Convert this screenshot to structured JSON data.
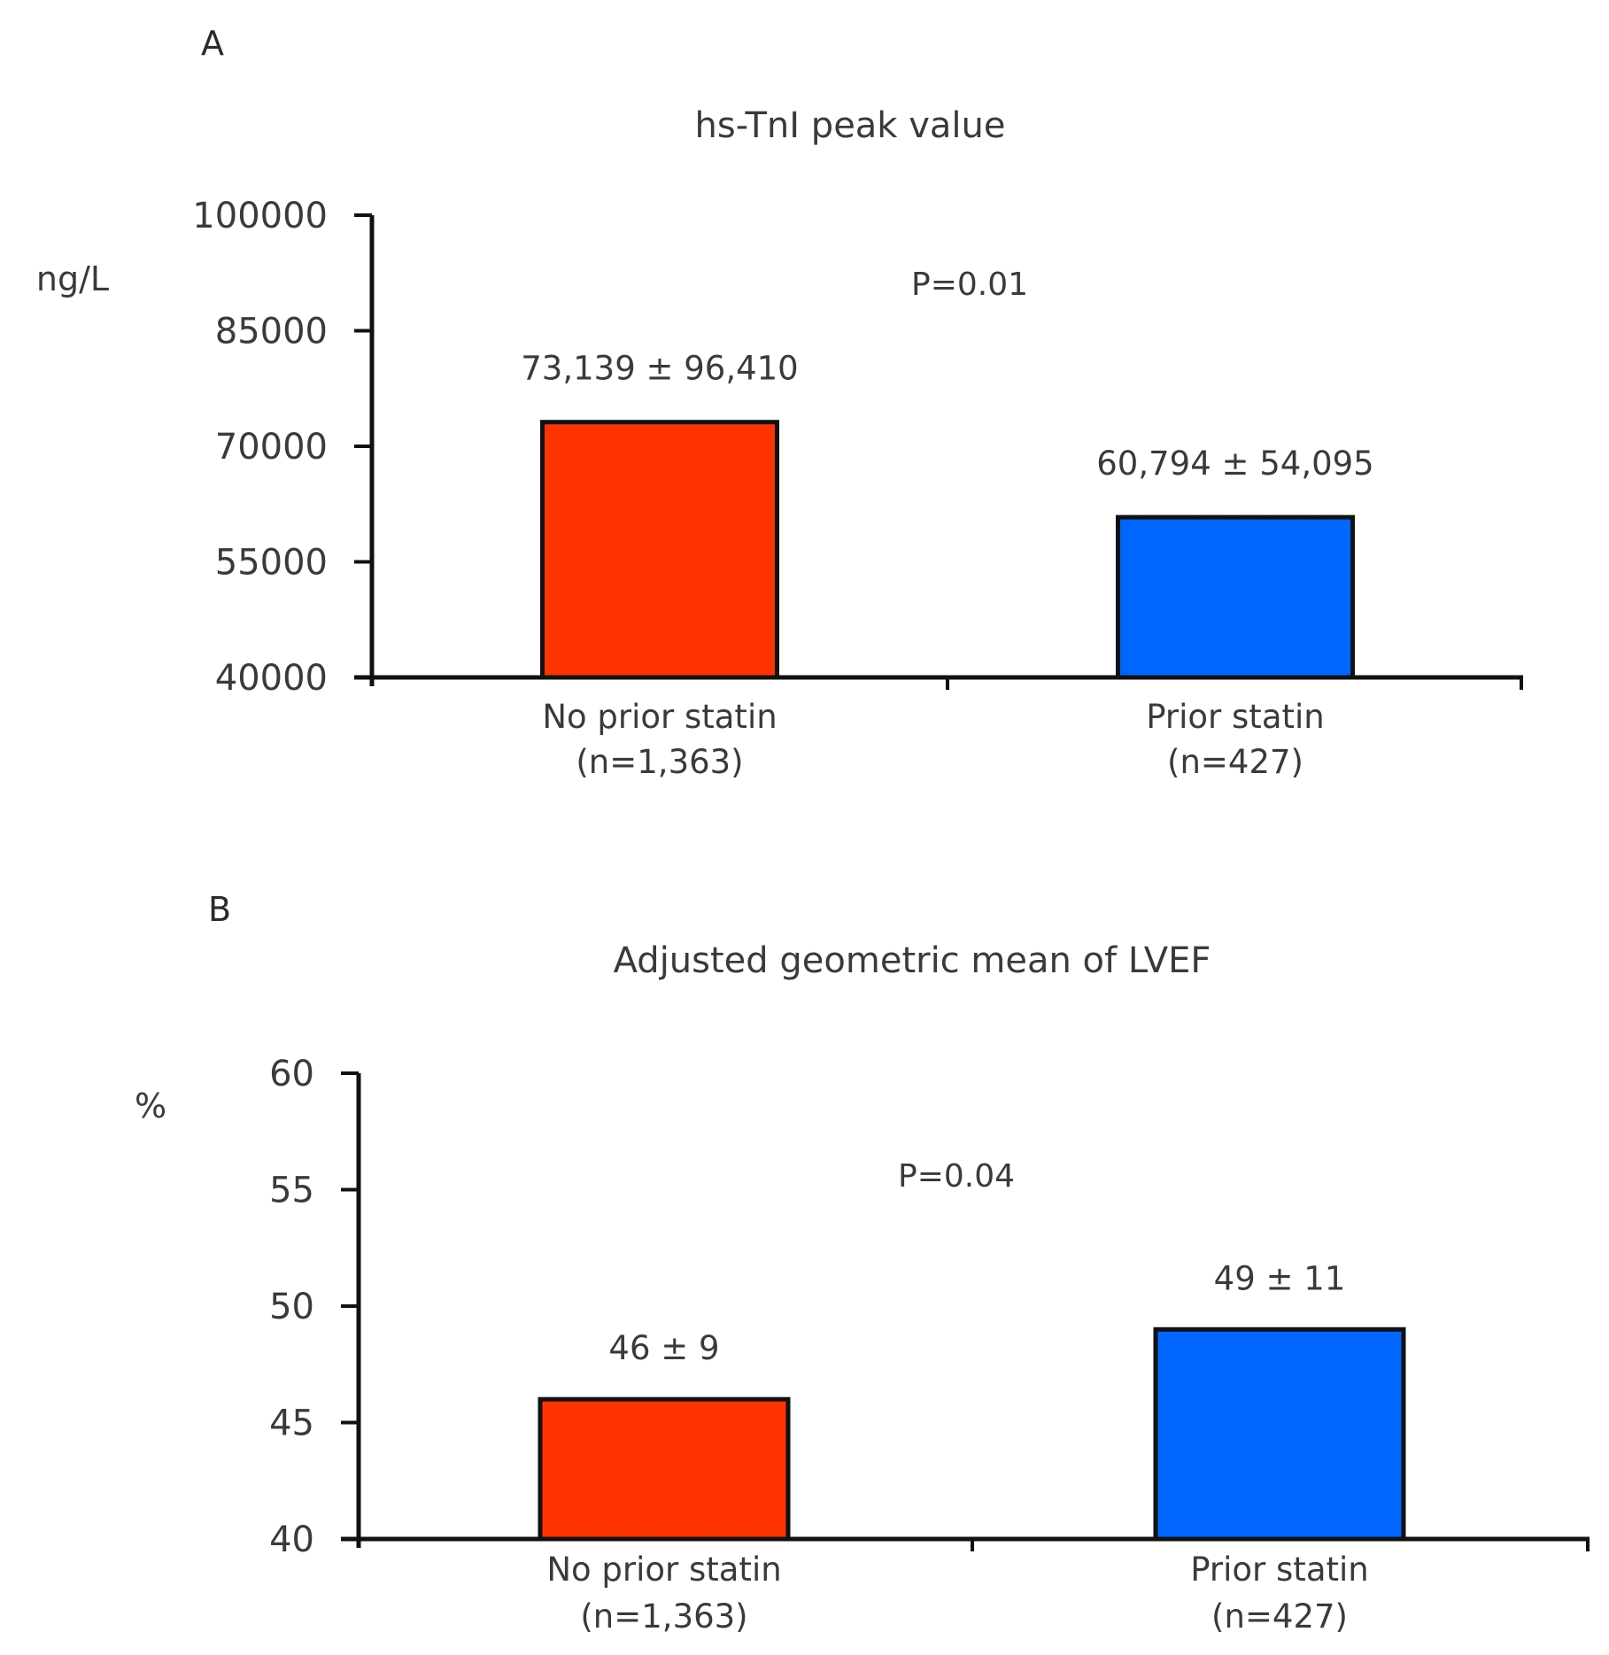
{
  "chart_data": [
    {
      "panel": "A",
      "type": "bar",
      "title": "hs-TnI peak value",
      "ylabel": "ng/L",
      "xlabel": "",
      "ylim": [
        40000,
        100000
      ],
      "yticks": [
        40000,
        55000,
        70000,
        85000,
        100000
      ],
      "tick_labels": [
        "40000",
        "55000",
        "70000",
        "85000",
        "100000"
      ],
      "categories": [
        {
          "line1": "No prior statin",
          "line2": "(n=1,363)"
        },
        {
          "line1": "Prior statin",
          "line2": "(n=427)"
        }
      ],
      "values": [
        73139,
        60794
      ],
      "data_labels": [
        "73,139 ± 96,410",
        "60,794 ± 54,095"
      ],
      "colors": [
        "#ff3300",
        "#0066ff"
      ],
      "annotation": "P=0.01",
      "grid": false
    },
    {
      "panel": "B",
      "type": "bar",
      "title": "Adjusted geometric mean of LVEF",
      "ylabel": "%",
      "xlabel": "",
      "ylim": [
        40,
        60
      ],
      "yticks": [
        40,
        45,
        50,
        55,
        60
      ],
      "tick_labels": [
        "40",
        "45",
        "50",
        "55",
        "60"
      ],
      "categories": [
        {
          "line1": "No prior statin",
          "line2": "(n=1,363)"
        },
        {
          "line1": "Prior statin",
          "line2": "(n=427)"
        }
      ],
      "values": [
        46,
        49
      ],
      "data_labels": [
        "46 ± 9",
        "49 ± 11"
      ],
      "colors": [
        "#ff3300",
        "#0066ff"
      ],
      "annotation": "P=0.04",
      "grid": false
    }
  ]
}
